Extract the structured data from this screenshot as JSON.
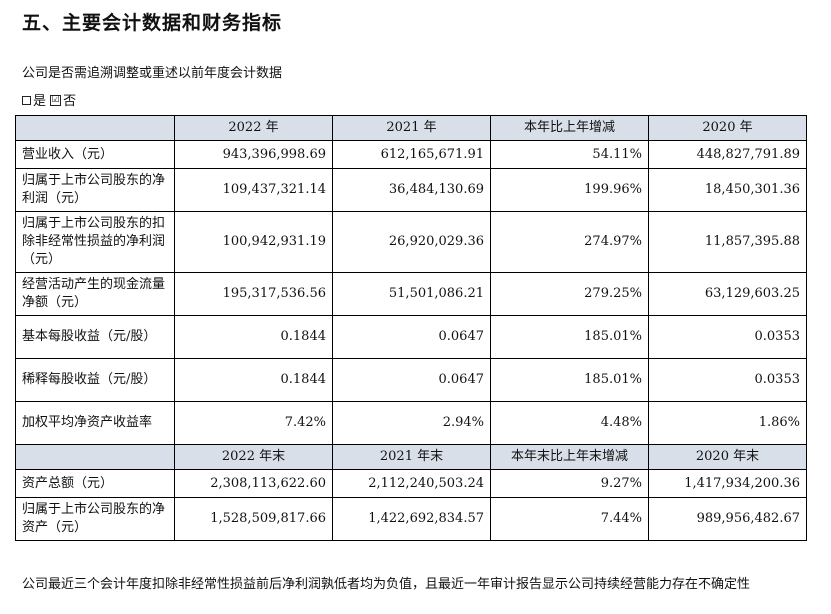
{
  "heading": "五、主要会计数据和财务指标",
  "question": "公司是否需追溯调整或重述以前年度会计数据",
  "options": {
    "yes": "是",
    "no": "否",
    "checkmark": "☑"
  },
  "table": {
    "header": [
      "",
      "2022 年",
      "2021 年",
      "本年比上年增减",
      "2020 年"
    ],
    "rows": [
      [
        "营业收入（元）",
        "943,396,998.69",
        "612,165,671.91",
        "54.11%",
        "448,827,791.89"
      ],
      [
        "归属于上市公司股东的净利润（元）",
        "109,437,321.14",
        "36,484,130.69",
        "199.96%",
        "18,450,301.36"
      ],
      [
        "归属于上市公司股东的扣除非经常性损益的净利润（元）",
        "100,942,931.19",
        "26,920,029.36",
        "274.97%",
        "11,857,395.88"
      ],
      [
        "经营活动产生的现金流量净额（元）",
        "195,317,536.56",
        "51,501,086.21",
        "279.25%",
        "63,129,603.25"
      ],
      [
        "基本每股收益（元/股）",
        "0.1844",
        "0.0647",
        "185.01%",
        "0.0353"
      ],
      [
        "稀释每股收益（元/股）",
        "0.1844",
        "0.0647",
        "185.01%",
        "0.0353"
      ],
      [
        "加权平均净资产收益率",
        "7.42%",
        "2.94%",
        "4.48%",
        "1.86%"
      ]
    ],
    "subheader": [
      "",
      "2022 年末",
      "2021 年末",
      "本年末比上年末增减",
      "2020 年末"
    ],
    "rows2": [
      [
        "资产总额（元）",
        "2,308,113,622.60",
        "2,112,240,503.24",
        "9.27%",
        "1,417,934,200.36"
      ],
      [
        "归属于上市公司股东的净资产（元）",
        "1,528,509,817.66",
        "1,422,692,834.57",
        "7.44%",
        "989,956,482.67"
      ]
    ]
  },
  "footer": "公司最近三个会计年度扣除非经常性损益前后净利润孰低者均为负值，且最近一年审计报告显示公司持续经营能力存在不确定性"
}
